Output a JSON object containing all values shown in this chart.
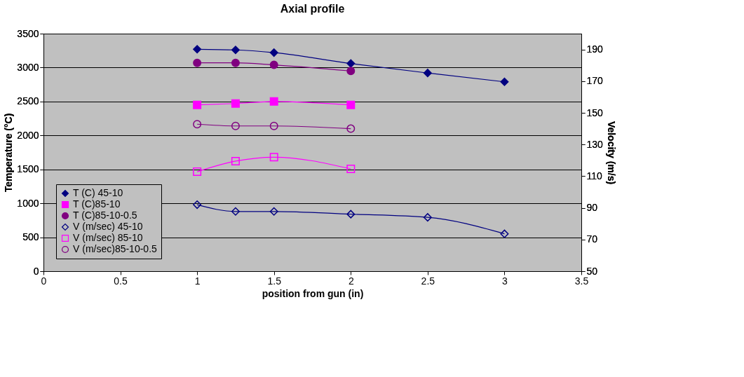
{
  "chart_data": {
    "type": "line",
    "title": "Axial profile",
    "xlabel": "position from gun (in)",
    "ylabel": "Temperature (°C)",
    "y2label": "Velocity (m/s)",
    "xlim": [
      0,
      3.5
    ],
    "xticks": [
      0,
      0.5,
      1,
      1.5,
      2,
      2.5,
      3,
      3.5
    ],
    "ylim": [
      0,
      3500
    ],
    "yticks": [
      0,
      500,
      1000,
      1500,
      2000,
      2500,
      3000,
      3500
    ],
    "y2lim": [
      50,
      200
    ],
    "y2ticks": [
      50,
      70,
      90,
      110,
      130,
      150,
      170,
      190
    ],
    "grid": "y",
    "legend": "bottom left",
    "series": [
      {
        "name": "T (C) 45-10",
        "color": "#000080",
        "marker": "diamond",
        "x": [
          1,
          1.25,
          1.5,
          2,
          2.5,
          3
        ],
        "values": [
          3270,
          3260,
          3220,
          3060,
          2920,
          2790
        ]
      },
      {
        "name": "T (C)85-10",
        "color": "#ff00ff",
        "marker": "square",
        "x": [
          1,
          1.25,
          1.5,
          2
        ],
        "values": [
          2450,
          2470,
          2500,
          2450
        ]
      },
      {
        "name": "T (C)85-10-0.5",
        "color": "#800080",
        "marker": "circle",
        "x": [
          1,
          1.25,
          1.5,
          2
        ],
        "values": [
          3070,
          3070,
          3040,
          2950
        ]
      },
      {
        "name": "V (m/sec) 45-10",
        "color": "#000080",
        "marker": "diamond",
        "axis": "y2",
        "x": [
          1,
          1.25,
          1.5,
          2,
          2.5,
          3
        ],
        "values": [
          92,
          87.7,
          87.7,
          86,
          84,
          73.6
        ]
      },
      {
        "name": "V (m/sec) 85-10",
        "color": "#ff00ff",
        "marker": "square",
        "axis": "y2",
        "x": [
          1,
          1.25,
          1.5,
          2
        ],
        "values": [
          112.8,
          119.5,
          122,
          114.6
        ]
      },
      {
        "name": "V (m/sec)85-10-0.5",
        "color": "#800080",
        "marker": "circle",
        "axis": "y2",
        "x": [
          1,
          1.25,
          1.5,
          2
        ],
        "values": [
          142.8,
          141.7,
          141.7,
          140
        ]
      }
    ]
  }
}
